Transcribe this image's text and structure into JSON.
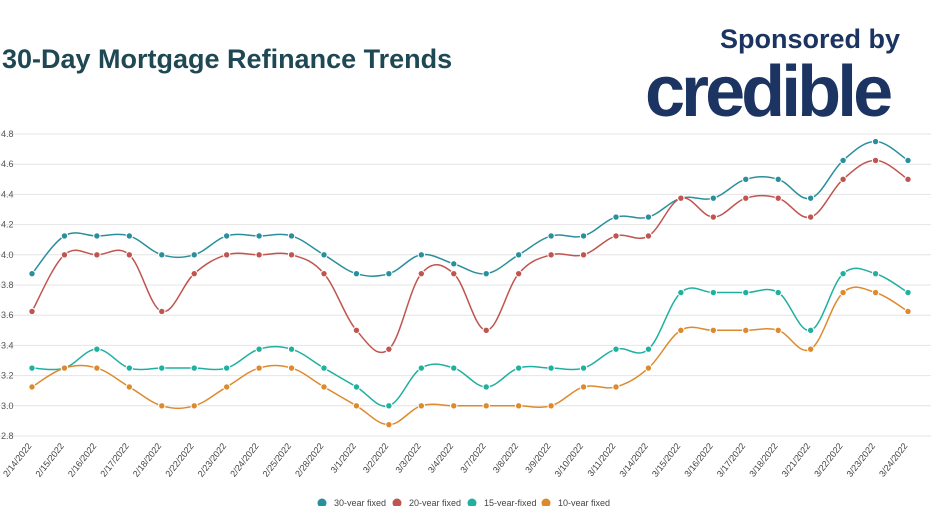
{
  "title": "30-Day Mortgage Refinance Trends",
  "sponsor": {
    "text": "Sponsored by",
    "logo": "credible"
  },
  "chart_data": {
    "type": "line",
    "categories": [
      "2/14/2022",
      "2/15/2022",
      "2/16/2022",
      "2/17/2022",
      "2/18/2022",
      "2/22/2022",
      "2/23/2022",
      "2/24/2022",
      "2/25/2022",
      "2/28/2022",
      "3/1/2022",
      "3/2/2022",
      "3/3/2022",
      "3/4/2022",
      "3/7/2022",
      "3/8/2022",
      "3/9/2022",
      "3/10/2022",
      "3/11/2022",
      "3/14/2022",
      "3/15/2022",
      "3/16/2022",
      "3/17/2022",
      "3/18/2022",
      "3/21/2022",
      "3/22/2022",
      "3/23/2022",
      "3/24/2022"
    ],
    "yticks": [
      "2.8",
      "3.0",
      "3.2",
      "3.4",
      "3.6",
      "3.8",
      "4.0",
      "4.2",
      "4.4",
      "4.6",
      "4.8"
    ],
    "ylim": [
      2.8,
      4.8
    ],
    "grid": true,
    "legend": "bottom",
    "series": [
      {
        "name": "30-year fixed",
        "color": "#2a8f9c",
        "values": [
          3.875,
          4.125,
          4.125,
          4.125,
          4.0,
          4.0,
          4.125,
          4.125,
          4.125,
          4.0,
          3.875,
          3.875,
          4.0,
          3.94,
          3.875,
          4.0,
          4.125,
          4.125,
          4.25,
          4.25,
          4.375,
          4.375,
          4.5,
          4.5,
          4.375,
          4.625,
          4.75,
          4.625
        ]
      },
      {
        "name": "20-year fixed",
        "color": "#c0544f",
        "values": [
          3.625,
          4.0,
          4.0,
          4.0,
          3.625,
          3.875,
          4.0,
          4.0,
          4.0,
          3.875,
          3.5,
          3.375,
          3.875,
          3.875,
          3.5,
          3.875,
          4.0,
          4.0,
          4.125,
          4.125,
          4.375,
          4.25,
          4.375,
          4.375,
          4.25,
          4.5,
          4.625,
          4.5
        ]
      },
      {
        "name": "15-year-fixed",
        "color": "#1fb0a0",
        "values": [
          3.25,
          3.25,
          3.375,
          3.25,
          3.25,
          3.25,
          3.25,
          3.375,
          3.375,
          3.25,
          3.125,
          3.0,
          3.25,
          3.25,
          3.125,
          3.25,
          3.25,
          3.25,
          3.375,
          3.375,
          3.75,
          3.75,
          3.75,
          3.75,
          3.5,
          3.875,
          3.875,
          3.75
        ]
      },
      {
        "name": "10-year fixed",
        "color": "#dd8a2e",
        "values": [
          3.125,
          3.25,
          3.25,
          3.125,
          3.0,
          3.0,
          3.125,
          3.25,
          3.25,
          3.125,
          3.0,
          2.875,
          3.0,
          3.0,
          3.0,
          3.0,
          3.0,
          3.125,
          3.125,
          3.25,
          3.5,
          3.5,
          3.5,
          3.5,
          3.375,
          3.75,
          3.75,
          3.625
        ]
      }
    ]
  }
}
